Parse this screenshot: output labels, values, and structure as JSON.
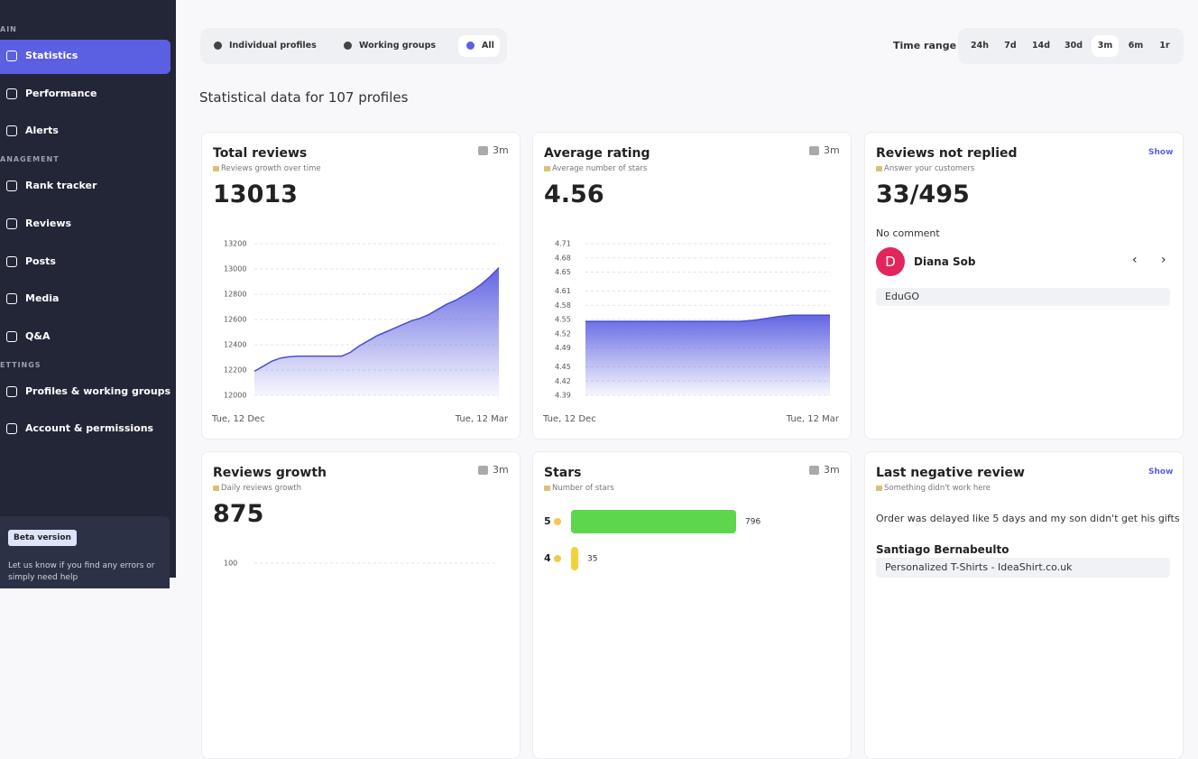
{
  "sidebar": {
    "groups": [
      {
        "label": "AIN",
        "items": [
          "Statistics",
          "Performance",
          "Alerts"
        ]
      },
      {
        "label": "ANAGEMENT",
        "items": [
          "Rank tracker",
          "Reviews",
          "Posts",
          "Media",
          "Q&A"
        ]
      },
      {
        "label": "ETTINGS",
        "items": [
          "Profiles & working groups",
          "Account & permissions"
        ]
      }
    ],
    "active": "Statistics",
    "beta": "Beta version",
    "help": "Let us know if you find any errors or simply need help"
  },
  "filters": {
    "tabs": [
      "Individual profiles",
      "Working groups",
      "All"
    ],
    "active_tab": "All",
    "time_label": "Time range",
    "ranges": [
      "24h",
      "7d",
      "14d",
      "30d",
      "3m",
      "6m",
      "1r"
    ],
    "active_range": "3m"
  },
  "heading": "Statistical data for 107 profiles",
  "cards": [
    {
      "title": "Total reviews",
      "subtitle": "Reviews growth over time",
      "badge": "3m",
      "value": 13013,
      "chart": {
        "type": "area",
        "ylim": [
          12000,
          13200
        ],
        "yticks": [
          12000,
          12200,
          12400,
          12600,
          12800,
          13000,
          13200
        ],
        "values": [
          12190,
          12230,
          12270,
          12295,
          12305,
          12310,
          12310,
          12310,
          12310,
          12310,
          12310,
          12340,
          12390,
          12430,
          12470,
          12500,
          12530,
          12560,
          12590,
          12610,
          12640,
          12680,
          12720,
          12750,
          12790,
          12830,
          12880,
          12940,
          13010
        ],
        "x_labels": [
          "Tue, 12 Dec",
          "Tue, 12 Mar"
        ]
      }
    },
    {
      "title": "Average rating",
      "subtitle": "Average number of stars",
      "badge": "3m",
      "value": 4.56,
      "chart": {
        "type": "area",
        "ylim": [
          4.39,
          4.71
        ],
        "yticks": [
          4.39,
          4.42,
          4.45,
          4.49,
          4.52,
          4.55,
          4.58,
          4.61,
          4.65,
          4.68,
          4.71
        ],
        "values": [
          4.546,
          4.546,
          4.546,
          4.546,
          4.546,
          4.546,
          4.546,
          4.546,
          4.546,
          4.546,
          4.546,
          4.546,
          4.546,
          4.548,
          4.552,
          4.556,
          4.559,
          4.559,
          4.559,
          4.559
        ],
        "x_labels": [
          "Tue, 12 Dec",
          "Tue, 12 Mar"
        ]
      }
    },
    {
      "title": "Reviews not replied",
      "action": "Show",
      "subtitle": "Answer your customers",
      "value": "33/495",
      "status": "No comment",
      "review": {
        "initial": "D",
        "author": "Diana Sob",
        "profile": "EduGO"
      }
    },
    {
      "title": "Reviews growth",
      "subtitle": "Daily reviews growth",
      "badge": "3m",
      "value": 875,
      "chart": {
        "type": "ticks",
        "yticks": [
          100
        ]
      }
    },
    {
      "title": "Stars",
      "subtitle": "Number of stars",
      "badge": "3m",
      "chart": {
        "type": "hbar",
        "categories": [
          "5",
          "4"
        ],
        "values": [
          796,
          35
        ],
        "colors": [
          "#5cd64b",
          "#f2d23c"
        ]
      }
    },
    {
      "title": "Last negative review",
      "action": "Show",
      "subtitle": "Something didn't work here",
      "text": "Order was delayed like 5 days and my son didn't get his gifts ...",
      "review": {
        "author": "Santiago Bernabeulto",
        "profile": "Personalized T-Shirts - IdeaShirt.co.uk"
      }
    }
  ]
}
